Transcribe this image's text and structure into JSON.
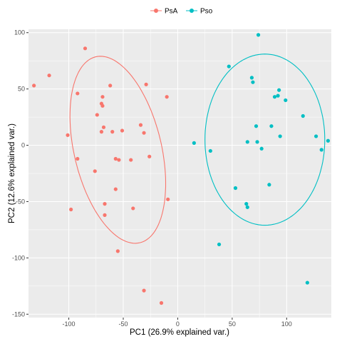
{
  "chart_data": {
    "type": "scatter",
    "xlabel": "PC1 (26.9% explained var.)",
    "ylabel": "PC2 (12.6% explained var.)",
    "xlim": [
      -137,
      141
    ],
    "ylim": [
      -153,
      103
    ],
    "x_ticks": [
      -100,
      -50,
      0,
      50,
      100
    ],
    "y_ticks": [
      100,
      50,
      0,
      -50,
      -100,
      -150
    ],
    "grid": true,
    "legend": {
      "position": "top"
    },
    "series": [
      {
        "name": "PsA",
        "color": "#F8766D",
        "points": [
          [
            -132,
            53
          ],
          [
            -118,
            62
          ],
          [
            -85,
            86
          ],
          [
            -92,
            46
          ],
          [
            -101,
            9
          ],
          [
            -98,
            -57
          ],
          [
            -92,
            -12
          ],
          [
            -74,
            27
          ],
          [
            -69,
            43
          ],
          [
            -70,
            37
          ],
          [
            -69,
            35
          ],
          [
            -62,
            53
          ],
          [
            -68,
            16
          ],
          [
            -70,
            12
          ],
          [
            -60,
            12
          ],
          [
            -51,
            13
          ],
          [
            -57,
            -12
          ],
          [
            -54,
            -13
          ],
          [
            -43,
            -13
          ],
          [
            -76,
            -23
          ],
          [
            -57,
            -39
          ],
          [
            -67,
            -52
          ],
          [
            -67,
            -62
          ],
          [
            -41,
            -56
          ],
          [
            -34,
            18
          ],
          [
            -31,
            11
          ],
          [
            -26,
            -10
          ],
          [
            -29,
            54
          ],
          [
            -10,
            43
          ],
          [
            -9,
            -48
          ],
          [
            -55,
            -94
          ],
          [
            -31,
            -129
          ],
          [
            -15,
            -140
          ]
        ],
        "ellipse": {
          "cx": -55,
          "cy": -4,
          "rx": 85,
          "ry": 40,
          "rotation_deg": -76
        }
      },
      {
        "name": "Pso",
        "color": "#00BFC4",
        "points": [
          [
            74,
            98
          ],
          [
            47,
            70
          ],
          [
            68,
            60
          ],
          [
            69,
            56
          ],
          [
            93,
            49
          ],
          [
            89,
            43
          ],
          [
            92,
            44
          ],
          [
            99,
            40
          ],
          [
            115,
            26
          ],
          [
            72,
            17
          ],
          [
            86,
            17
          ],
          [
            94,
            8
          ],
          [
            127,
            8
          ],
          [
            138,
            4
          ],
          [
            64,
            3
          ],
          [
            73,
            3
          ],
          [
            77,
            -3
          ],
          [
            132,
            -4
          ],
          [
            15,
            2
          ],
          [
            30,
            -5
          ],
          [
            53,
            -38
          ],
          [
            84,
            -35
          ],
          [
            63,
            -52
          ],
          [
            64,
            -55
          ],
          [
            38,
            -88
          ],
          [
            119,
            -122
          ]
        ],
        "ellipse": {
          "cx": 80,
          "cy": 5,
          "rx": 55,
          "ry": 76,
          "rotation_deg": 0
        }
      }
    ]
  }
}
